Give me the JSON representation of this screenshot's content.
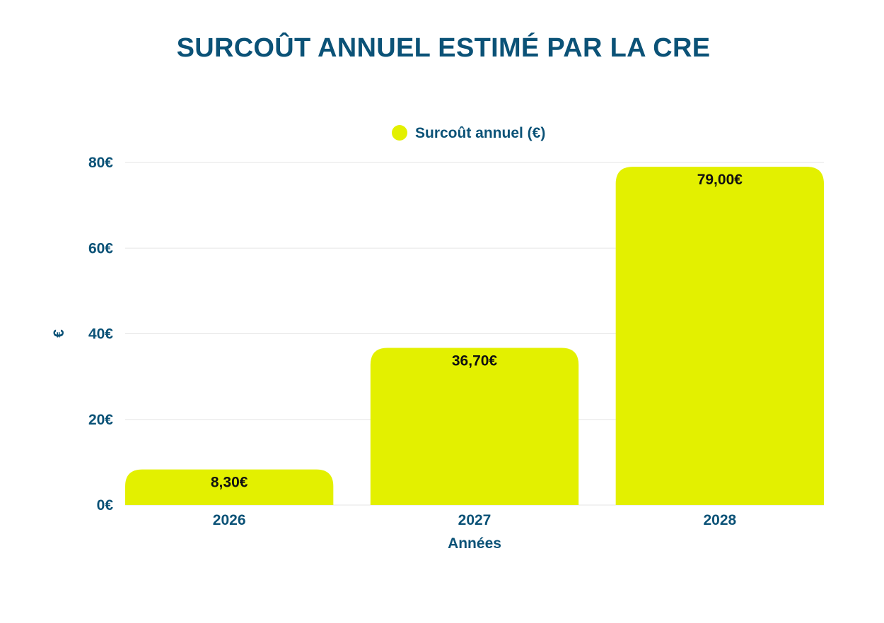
{
  "colors": {
    "text": "#0b5277",
    "bar": "#e3f000",
    "grid": "#e6e6e6",
    "label": "#111111",
    "background": "#ffffff"
  },
  "chart_data": {
    "type": "bar",
    "title": "SURCOÛT ANNUEL ESTIMÉ PAR LA CRE",
    "categories": [
      "2026",
      "2027",
      "2028"
    ],
    "series": [
      {
        "name": "Surcoût annuel (€)",
        "values": [
          8.3,
          36.7,
          79.0
        ],
        "labels": [
          "8,30€",
          "36,70€",
          "79,00€"
        ]
      }
    ],
    "xlabel": "Années",
    "ylabel": "€",
    "ylim": [
      0,
      80
    ],
    "yticks": [
      0,
      20,
      40,
      60,
      80
    ],
    "ytick_labels": [
      "0€",
      "20€",
      "40€",
      "60€",
      "80€"
    ],
    "grid": true,
    "legend": "top-center"
  }
}
